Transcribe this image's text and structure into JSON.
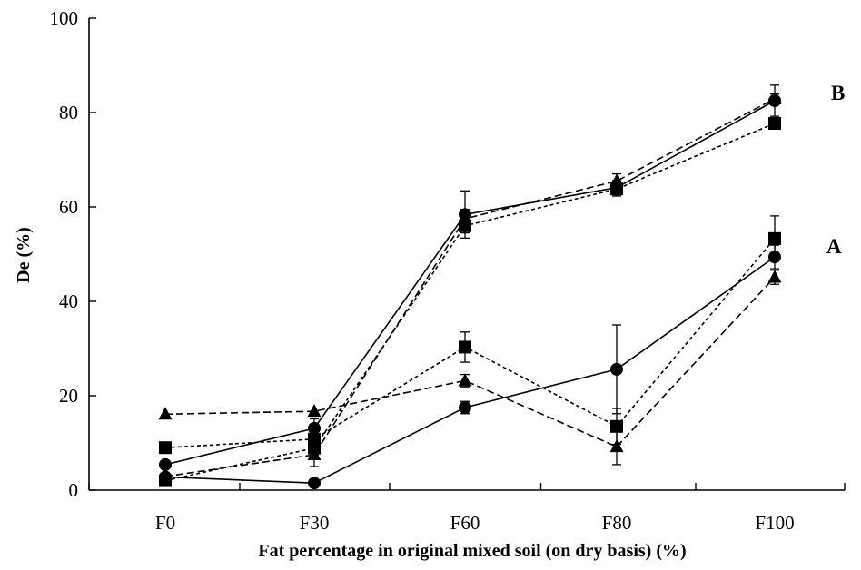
{
  "chart_data": {
    "type": "line",
    "title": "",
    "xlabel": "Fat percentage in original mixed soil (on dry basis) (%)",
    "ylabel": "De (%)",
    "categories": [
      "F0",
      "F30",
      "F60",
      "F80",
      "F100"
    ],
    "ylim": [
      0,
      100
    ],
    "yticks": [
      0,
      20,
      40,
      60,
      80,
      100
    ],
    "grid": false,
    "legend": "none",
    "annotations": [
      "A",
      "B"
    ],
    "series": [
      {
        "group": "A",
        "marker": "circle",
        "line": "solid",
        "values": [
          2.8,
          1.5,
          17.5,
          25.6,
          49.4
        ],
        "err": [
          0,
          0,
          1.3,
          9.4,
          2.5
        ]
      },
      {
        "group": "A",
        "marker": "square",
        "line": "dotted",
        "values": [
          9.0,
          10.8,
          30.3,
          13.5,
          53.3
        ],
        "err": [
          0,
          0,
          3.2,
          3.8,
          4.8
        ]
      },
      {
        "group": "A",
        "marker": "triangle",
        "line": "dashed",
        "values": [
          16.1,
          16.7,
          23.2,
          9.2,
          45.1
        ],
        "err": [
          0,
          0,
          1.3,
          3.8,
          1.5
        ]
      },
      {
        "group": "B",
        "marker": "circle",
        "line": "solid",
        "values": [
          5.4,
          13.1,
          58.4,
          64.1,
          82.5
        ],
        "err": [
          0,
          2.0,
          5.0,
          1.5,
          3.3
        ]
      },
      {
        "group": "B",
        "marker": "square",
        "line": "dotted",
        "values": [
          2.0,
          8.9,
          56.0,
          63.8,
          77.7
        ],
        "err": [
          0,
          1.5,
          1.5,
          1.5,
          1.2
        ]
      },
      {
        "group": "B",
        "marker": "triangle",
        "line": "dashed",
        "values": [
          2.9,
          7.5,
          57.5,
          65.5,
          82.9
        ],
        "err": [
          0,
          2.5,
          2.0,
          1.5,
          1.0
        ]
      }
    ]
  }
}
